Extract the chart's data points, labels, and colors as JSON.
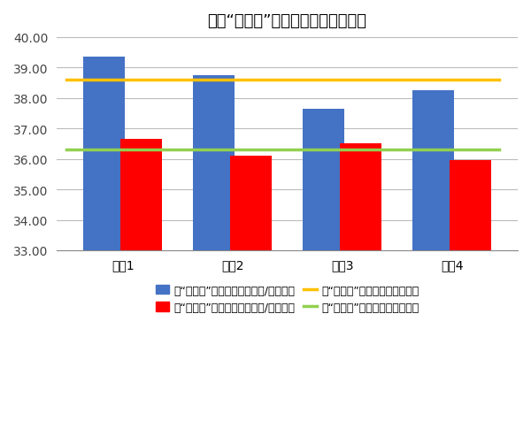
{
  "title": "使用“机智人”节油开关前后油耗对比",
  "categories": [
    "司机1",
    "司机2",
    "司机3",
    "司机4"
  ],
  "blue_values": [
    39.35,
    38.75,
    37.65,
    38.25
  ],
  "red_values": [
    36.65,
    36.1,
    36.5,
    35.95
  ],
  "blue_avg": 38.6,
  "red_avg": 36.3,
  "ylim_min": 33.0,
  "ylim_max": 40.0,
  "yticks": [
    33.0,
    34.0,
    35.0,
    36.0,
    37.0,
    38.0,
    39.0,
    40.0
  ],
  "blue_bar_color": "#4472C4",
  "red_bar_color": "#FF0000",
  "blue_avg_color": "#FFC000",
  "red_avg_color": "#92D050",
  "background_color": "#FFFFFF",
  "grid_color": "#BBBBBB",
  "title_fontsize": 13,
  "tick_fontsize": 10,
  "legend_fontsize": 9,
  "bar_width": 0.38,
  "legend_blue_bar": "无“机智人”节油开关油耗（升/百公里）",
  "legend_red_bar": "有“机智人”节油开关油耗（升/百公里）",
  "legend_blue_line": "无“机智人”节油开关油耗平均値",
  "legend_red_line": "有“机智人”节油开关油耗平均値"
}
